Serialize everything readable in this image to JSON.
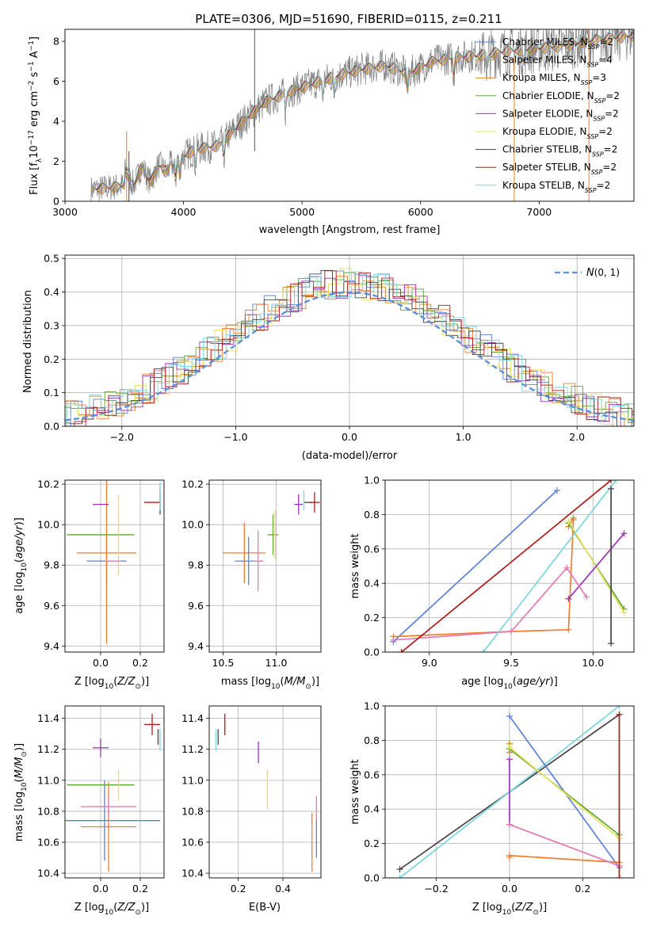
{
  "figure": {
    "title": "PLATE=0306, MJD=51690, FIBERID=0115, z=0.211"
  },
  "colors": {
    "Chabrier MILES": "#5b80d6",
    "Salpeter MILES": "#f07c2e",
    "Kroupa MILES": "#d2871f",
    "Chabrier ELODIE": "#5fa832",
    "Salpeter ELODIE": "#9b32b8",
    "Kroupa ELODIE": "#e9e05c",
    "Chabrier STELIB": "#444444",
    "Salpeter STELIB": "#b01818",
    "Kroupa STELIB": "#7ad6e0",
    "data": "#7f7f7f",
    "gaussian": "#5b8fd6",
    "pink": "#e47ab0",
    "lime": "#c7d94a"
  },
  "chart_data": [
    {
      "id": "spectrum",
      "type": "line",
      "title": "PLATE=0306, MJD=51690, FIBERID=0115, z=0.211",
      "xlabel": "wavelength [Angstrom, rest frame]",
      "ylabel": "Flux [f_λ10^-17 erg cm^-2 s^-1 A^-1]",
      "xlim": [
        3000,
        7800
      ],
      "ylim": [
        0,
        8.6
      ],
      "xticks": [
        3000,
        4000,
        5000,
        6000,
        7000
      ],
      "yticks": [
        0,
        2,
        4,
        6,
        8
      ],
      "grid": false,
      "legend_position": "top-right",
      "legend": [
        {
          "label": "Chabrier MILES, N_SSP=2",
          "model": "Chabrier MILES"
        },
        {
          "label": "Salpeter MILES, N_SSP=4",
          "model": "Salpeter MILES"
        },
        {
          "label": "Kroupa MILES, N_SSP=3",
          "model": "Kroupa MILES"
        },
        {
          "label": "Chabrier ELODIE, N_SSP=2",
          "model": "Chabrier ELODIE"
        },
        {
          "label": "Salpeter ELODIE, N_SSP=2",
          "model": "Salpeter ELODIE"
        },
        {
          "label": "Kroupa ELODIE, N_SSP=2",
          "model": "Kroupa ELODIE"
        },
        {
          "label": "Chabrier STELIB, N_SSP=2",
          "model": "Chabrier STELIB"
        },
        {
          "label": "Salpeter STELIB, N_SSP=2",
          "model": "Salpeter STELIB"
        },
        {
          "label": "Kroupa STELIB, N_SSP=2",
          "model": "Kroupa STELIB"
        }
      ],
      "continuum": {
        "x": [
          3220,
          3400,
          3600,
          3800,
          3950,
          4100,
          4300,
          4500,
          4700,
          4900,
          5100,
          5300,
          5500,
          5700,
          5900,
          6100,
          6300,
          6500,
          6700,
          6900,
          7100,
          7300,
          7500,
          7800
        ],
        "y": [
          0.6,
          0.7,
          0.9,
          1.1,
          2.1,
          2.6,
          2.8,
          4.0,
          5.0,
          5.5,
          5.9,
          6.3,
          6.6,
          6.8,
          6.4,
          7.0,
          7.2,
          7.3,
          7.5,
          7.6,
          7.7,
          7.9,
          8.1,
          8.3
        ]
      }
    },
    {
      "id": "residuals",
      "type": "histogram",
      "xlabel": "(data-model)/error",
      "ylabel": "Normed distribution",
      "xlim": [
        -2.5,
        2.5
      ],
      "ylim": [
        0,
        0.51
      ],
      "xticks": [
        -2,
        -1,
        0,
        1,
        2
      ],
      "yticks": [
        0.0,
        0.1,
        0.2,
        0.3,
        0.4,
        0.5
      ],
      "grid": true,
      "legend_position": "top-right",
      "legend": [
        {
          "label": "N(0,1)",
          "style": "dashed"
        }
      ],
      "gaussian": {
        "mean": 0,
        "sigma": 1
      }
    },
    {
      "id": "age-vs-Z",
      "type": "errorbar",
      "xlabel": "Z [log10(Z/Z☉)]",
      "ylabel": "age [log10(age/yr)]",
      "xlim": [
        -0.18,
        0.32
      ],
      "ylim": [
        9.37,
        10.22
      ],
      "xticks": [
        0.0,
        0.2
      ],
      "yticks": [
        9.4,
        9.6,
        9.8,
        10.0,
        10.2
      ],
      "grid": true,
      "points": [
        {
          "model": "Chabrier MILES",
          "x": 0.03,
          "y": 9.82,
          "xerr": 0.1,
          "yerr": 0.12
        },
        {
          "model": "Salpeter MILES",
          "x": 0.03,
          "y": 9.86,
          "xerr": 0.15,
          "yerr": 0.45
        },
        {
          "model": "Chabrier ELODIE",
          "x": 0.0,
          "y": 9.95,
          "xerr": 0.17,
          "yerr": 0.0
        },
        {
          "model": "Kroupa ELODIE",
          "x": 0.09,
          "y": 9.95,
          "xerr": 0.0,
          "yerr": 0.2
        },
        {
          "model": "Salpeter ELODIE",
          "x": 0.0,
          "y": 10.1,
          "xerr": 0.04,
          "yerr": 0.0
        },
        {
          "model": "Salpeter STELIB",
          "x": 0.26,
          "y": 10.11,
          "xerr": 0.04,
          "yerr": 0.0
        },
        {
          "model": "Chabrier STELIB",
          "x": 0.3,
          "y": 10.11,
          "xerr": 0.0,
          "yerr": 0.06
        },
        {
          "model": "Kroupa STELIB",
          "x": 0.3,
          "y": 10.14,
          "xerr": 0.0,
          "yerr": 0.07
        },
        {
          "model": "pink",
          "x": 0.06,
          "y": 9.82,
          "xerr": 0.04,
          "yerr": 0.0
        }
      ]
    },
    {
      "id": "age-vs-mass",
      "type": "errorbar",
      "xlabel": "mass [log10(M/M☉)]",
      "ylabel": "",
      "xlim": [
        10.37,
        11.42
      ],
      "ylim": [
        9.37,
        10.22
      ],
      "xticks": [
        10.5,
        11.0
      ],
      "yticks": [
        9.4,
        9.6,
        9.8,
        10.0,
        10.2
      ],
      "grid": true,
      "points": [
        {
          "model": "Salpeter MILES",
          "x": 10.7,
          "y": 9.86,
          "xerr": 0.2,
          "yerr": 0.15
        },
        {
          "model": "Chabrier MILES",
          "x": 10.74,
          "y": 9.82,
          "xerr": 0.13,
          "yerr": 0.12
        },
        {
          "model": "pink",
          "x": 10.83,
          "y": 9.82,
          "xerr": 0.05,
          "yerr": 0.15
        },
        {
          "model": "Chabrier ELODIE",
          "x": 10.97,
          "y": 9.95,
          "xerr": 0.05,
          "yerr": 0.1
        },
        {
          "model": "Kroupa ELODIE",
          "x": 10.99,
          "y": 9.95,
          "xerr": 0.0,
          "yerr": 0.12
        },
        {
          "model": "Salpeter ELODIE",
          "x": 11.21,
          "y": 10.1,
          "xerr": 0.04,
          "yerr": 0.05
        },
        {
          "model": "Chabrier STELIB",
          "x": 11.3,
          "y": 10.11,
          "xerr": 0.04,
          "yerr": 0.0
        },
        {
          "model": "Salpeter STELIB",
          "x": 11.36,
          "y": 10.11,
          "xerr": 0.05,
          "yerr": 0.05
        },
        {
          "model": "Kroupa STELIB",
          "x": 11.26,
          "y": 10.12,
          "xerr": 0.0,
          "yerr": 0.05
        }
      ]
    },
    {
      "id": "weight-vs-age",
      "type": "line",
      "xlabel": "age [log10(age/yr)]",
      "ylabel": "mass weight",
      "xlim": [
        8.73,
        10.25
      ],
      "ylim": [
        0,
        1
      ],
      "xticks": [
        9.0,
        9.5,
        10.0
      ],
      "yticks": [
        0.0,
        0.2,
        0.4,
        0.6,
        0.8,
        1.0
      ],
      "grid": true,
      "series": [
        {
          "model": "Chabrier MILES",
          "x": [
            8.78,
            9.78
          ],
          "y": [
            0.06,
            0.94
          ]
        },
        {
          "model": "Salpeter MILES",
          "x": [
            8.78,
            9.5,
            9.85,
            9.88
          ],
          "y": [
            0.09,
            0.12,
            0.13,
            0.77
          ]
        },
        {
          "model": "Kroupa MILES",
          "x": [
            9.85,
            9.88
          ],
          "y": [
            0.73,
            0.78
          ]
        },
        {
          "model": "Chabrier ELODIE",
          "x": [
            9.85,
            10.19
          ],
          "y": [
            0.75,
            0.25
          ]
        },
        {
          "model": "Kroupa ELODIE",
          "x": [
            9.85,
            10.19
          ],
          "y": [
            0.76,
            0.23
          ]
        },
        {
          "model": "Salpeter ELODIE",
          "x": [
            9.85,
            10.19
          ],
          "y": [
            0.31,
            0.69
          ]
        },
        {
          "model": "pink",
          "x": [
            8.78,
            9.5,
            9.84,
            9.96
          ],
          "y": [
            0.07,
            0.12,
            0.49,
            0.32
          ]
        },
        {
          "model": "Salpeter STELIB",
          "x": [
            8.83,
            10.11
          ],
          "y": [
            0.0,
            1.0
          ]
        },
        {
          "model": "Kroupa STELIB",
          "x": [
            9.33,
            10.14
          ],
          "y": [
            0.0,
            1.0
          ]
        },
        {
          "model": "Chabrier STELIB",
          "x": [
            10.11,
            10.11
          ],
          "y": [
            0.05,
            0.95
          ]
        }
      ]
    },
    {
      "id": "mass-vs-Z",
      "type": "errorbar",
      "xlabel": "Z [log10(Z/Z☉)]",
      "ylabel": "mass [log10(M/M☉)]",
      "xlim": [
        -0.18,
        0.32
      ],
      "ylim": [
        10.37,
        11.48
      ],
      "xticks": [
        0.0,
        0.2
      ],
      "yticks": [
        10.4,
        10.6,
        10.8,
        11.0,
        11.2,
        11.4
      ],
      "grid": true,
      "points": [
        {
          "model": "Salpeter MILES",
          "x": 0.04,
          "y": 10.7,
          "xerr": 0.14,
          "yerr": 0.29
        },
        {
          "model": "Chabrier MILES",
          "x": 0.02,
          "y": 10.74,
          "xerr": 0.28,
          "yerr": 0.26
        },
        {
          "model": "pink",
          "x": 0.04,
          "y": 10.83,
          "xerr": 0.14,
          "yerr": 0.07
        },
        {
          "model": "Chabrier ELODIE",
          "x": 0.0,
          "y": 10.97,
          "xerr": 0.17,
          "yerr": 0.0
        },
        {
          "model": "Kroupa ELODIE",
          "x": 0.09,
          "y": 10.97,
          "xerr": 0.0,
          "yerr": 0.1
        },
        {
          "model": "Salpeter ELODIE",
          "x": 0.0,
          "y": 11.21,
          "xerr": 0.04,
          "yerr": 0.06
        },
        {
          "model": "Salpeter STELIB",
          "x": 0.26,
          "y": 11.36,
          "xerr": 0.04,
          "yerr": 0.07
        },
        {
          "model": "Chabrier STELIB",
          "x": 0.29,
          "y": 11.28,
          "xerr": 0.0,
          "yerr": 0.05
        },
        {
          "model": "Kroupa STELIB",
          "x": 0.3,
          "y": 11.26,
          "xerr": 0.0,
          "yerr": 0.07
        }
      ]
    },
    {
      "id": "mass-vs-ebv",
      "type": "errorbar",
      "xlabel": "E(B-V)",
      "ylabel": "",
      "xlim": [
        0.07,
        0.57
      ],
      "ylim": [
        10.37,
        11.48
      ],
      "xticks": [
        0.2,
        0.4
      ],
      "yticks": [
        10.4,
        10.6,
        10.8,
        11.0,
        11.2,
        11.4
      ],
      "grid": true,
      "points": [
        {
          "model": "Chabrier STELIB",
          "x": 0.11,
          "y": 11.28,
          "xerr": 0.0,
          "yerr": 0.05
        },
        {
          "model": "Kroupa STELIB",
          "x": 0.1,
          "y": 11.26,
          "xerr": 0.0,
          "yerr": 0.07
        },
        {
          "model": "Salpeter STELIB",
          "x": 0.14,
          "y": 11.36,
          "xerr": 0.0,
          "yerr": 0.07
        },
        {
          "model": "Salpeter ELODIE",
          "x": 0.29,
          "y": 11.18,
          "xerr": 0.0,
          "yerr": 0.07
        },
        {
          "model": "Kroupa ELODIE",
          "x": 0.33,
          "y": 10.94,
          "xerr": 0.0,
          "yerr": 0.13
        },
        {
          "model": "Salpeter MILES",
          "x": 0.53,
          "y": 10.6,
          "xerr": 0.0,
          "yerr": 0.19
        },
        {
          "model": "pink",
          "x": 0.55,
          "y": 10.8,
          "xerr": 0.0,
          "yerr": 0.1
        },
        {
          "model": "Chabrier MILES",
          "x": 0.55,
          "y": 10.62,
          "xerr": 0.0,
          "yerr": 0.12
        }
      ]
    },
    {
      "id": "weight-vs-Z",
      "type": "line",
      "xlabel": "Z [log10(Z/Z☉)]",
      "ylabel": "mass weight",
      "xlim": [
        -0.34,
        0.34
      ],
      "ylim": [
        0,
        1
      ],
      "xticks": [
        -0.2,
        0.0,
        0.2
      ],
      "yticks": [
        0.0,
        0.2,
        0.4,
        0.6,
        0.8,
        1.0
      ],
      "grid": true,
      "series": [
        {
          "model": "Chabrier STELIB",
          "x": [
            -0.3,
            0.3
          ],
          "y": [
            0.05,
            0.95
          ]
        },
        {
          "model": "Kroupa STELIB",
          "x": [
            -0.3,
            0.3
          ],
          "y": [
            0.0,
            1.0
          ]
        },
        {
          "model": "Chabrier MILES",
          "x": [
            0.0,
            0.3
          ],
          "y": [
            0.94,
            0.06
          ]
        },
        {
          "model": "Salpeter MILES",
          "x": [
            0.0,
            0.0,
            0.3
          ],
          "y": [
            0.12,
            0.13,
            0.09
          ]
        },
        {
          "model": "Kroupa MILES",
          "x": [
            0.0,
            0.0
          ],
          "y": [
            0.73,
            0.78
          ]
        },
        {
          "model": "Chabrier ELODIE",
          "x": [
            0.0,
            0.3
          ],
          "y": [
            0.75,
            0.25
          ]
        },
        {
          "model": "Kroupa ELODIE",
          "x": [
            0.0,
            0.3
          ],
          "y": [
            0.76,
            0.23
          ]
        },
        {
          "model": "Salpeter ELODIE",
          "x": [
            0.0,
            0.0
          ],
          "y": [
            0.31,
            0.69
          ]
        },
        {
          "model": "pink",
          "x": [
            0.0,
            0.3
          ],
          "y": [
            0.31,
            0.07
          ]
        },
        {
          "model": "Salpeter STELIB",
          "x": [
            0.3,
            0.3
          ],
          "y": [
            0.0,
            0.95
          ]
        }
      ]
    }
  ]
}
